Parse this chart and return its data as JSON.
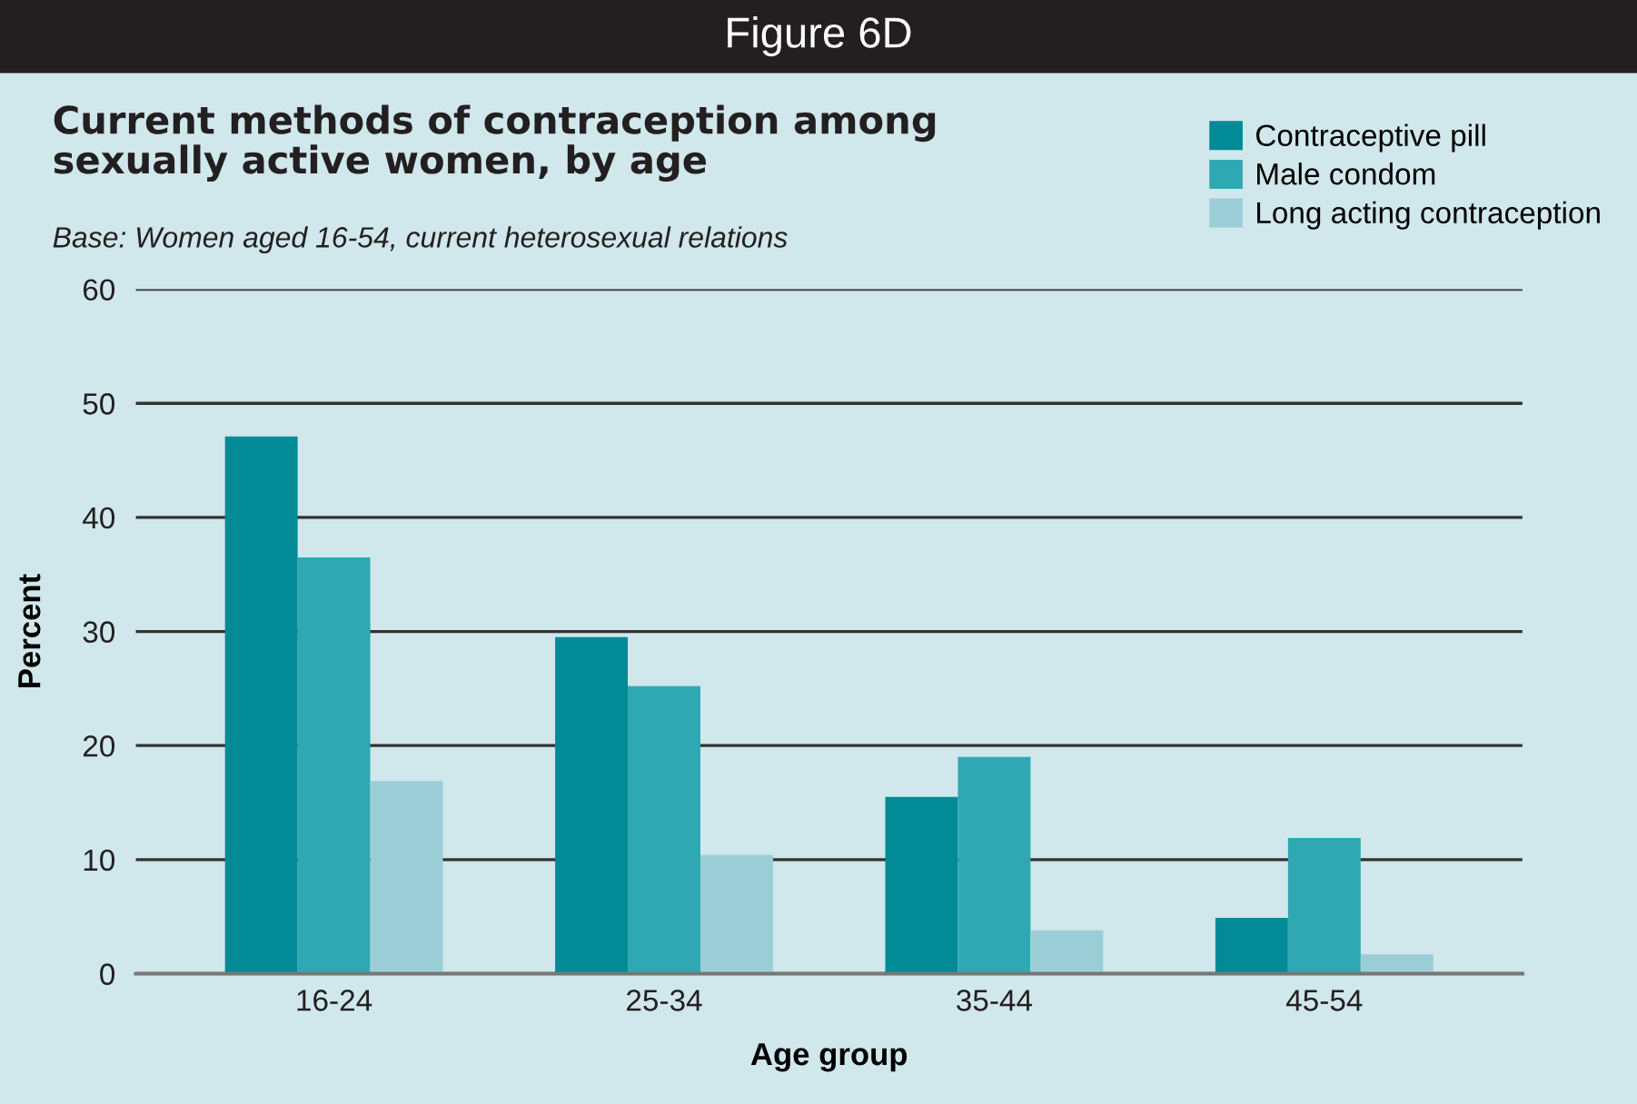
{
  "chart_data": {
    "type": "bar",
    "title": "Current methods of contraception among sexually active women, by age",
    "subtitle": "Base: Women aged 16-54, current heterosexual relations",
    "annotations": [
      "Figure 6D"
    ],
    "xlabel": "Age group",
    "ylabel": "Percent",
    "categories": [
      "16-24",
      "25-34",
      "35-44",
      "45-54"
    ],
    "series": [
      {
        "name": "Contraceptive pill",
        "color": "#028b96",
        "values": [
          47.1,
          29.5,
          15.5,
          4.9
        ]
      },
      {
        "name": "Male condom",
        "color": "#2fa8b3",
        "values": [
          36.5,
          25.2,
          19.0,
          11.9
        ]
      },
      {
        "name": "Long acting contraception",
        "color": "#9bcdd7",
        "values": [
          16.9,
          10.4,
          3.8,
          1.7
        ]
      }
    ],
    "ylim": [
      0,
      60
    ],
    "yticks": [
      0,
      10,
      20,
      30,
      40,
      50,
      60
    ],
    "grid": "y",
    "legend": "top right"
  }
}
